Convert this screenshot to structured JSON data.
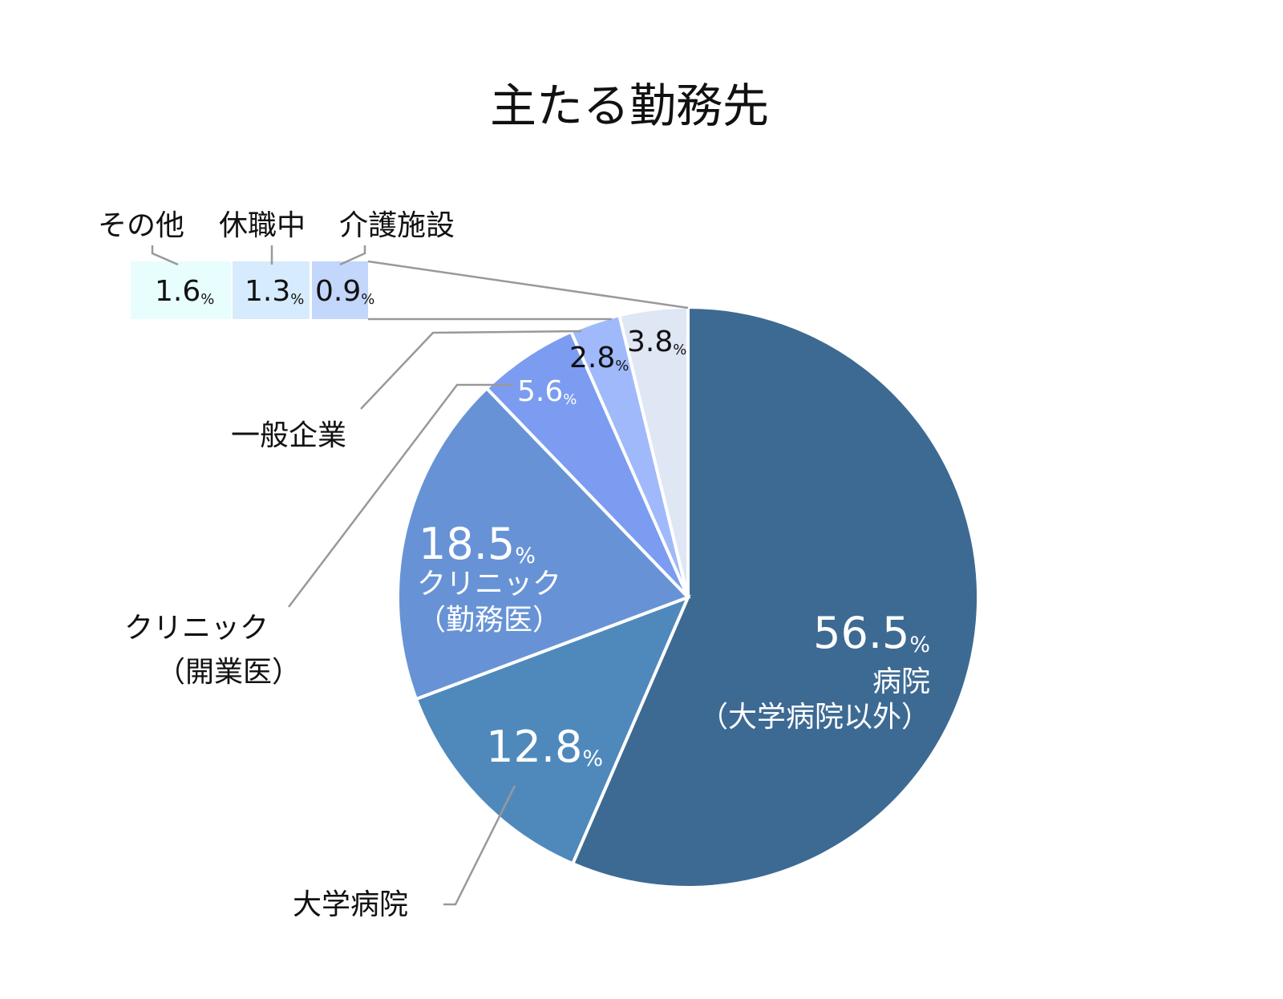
{
  "chart_data": {
    "type": "pie",
    "title": "主たる勤務先",
    "unit": "%",
    "slices": [
      {
        "label": "病院（大学病院以外）",
        "value": 56.5,
        "value_text": "56.5",
        "color": "#3d6a93"
      },
      {
        "label": "大学病院",
        "value": 12.8,
        "value_text": "12.8",
        "color": "#4f89bb"
      },
      {
        "label": "クリニック（勤務医）",
        "value": 18.5,
        "value_text": "18.5",
        "color": "#6793d6"
      },
      {
        "label": "クリニック（開業医）",
        "value": 5.6,
        "value_text": "5.6",
        "color": "#7b9cf0"
      },
      {
        "label": "一般企業",
        "value": 2.8,
        "value_text": "2.8",
        "color": "#a0b9fb"
      },
      {
        "label": "",
        "value": 3.8,
        "value_text": "3.8",
        "color": "#dfe6f4"
      }
    ],
    "breakdown_of_3.8": [
      {
        "label": "その他",
        "value": 1.6,
        "value_text": "1.6",
        "color": "#e8fdfe"
      },
      {
        "label": "休職中",
        "value": 1.3,
        "value_text": "1.3",
        "color": "#d6ebfd"
      },
      {
        "label": "介護施設",
        "value": 0.9,
        "value_text": "0.9",
        "color": "#c3d6fb"
      }
    ],
    "label_lines": {
      "hospital": [
        "病院",
        "（大学病院以外）"
      ],
      "clinic_employed": [
        "クリニック",
        "（勤務医）"
      ],
      "clinic_owner": [
        "クリニック",
        "（開業医）"
      ]
    }
  }
}
